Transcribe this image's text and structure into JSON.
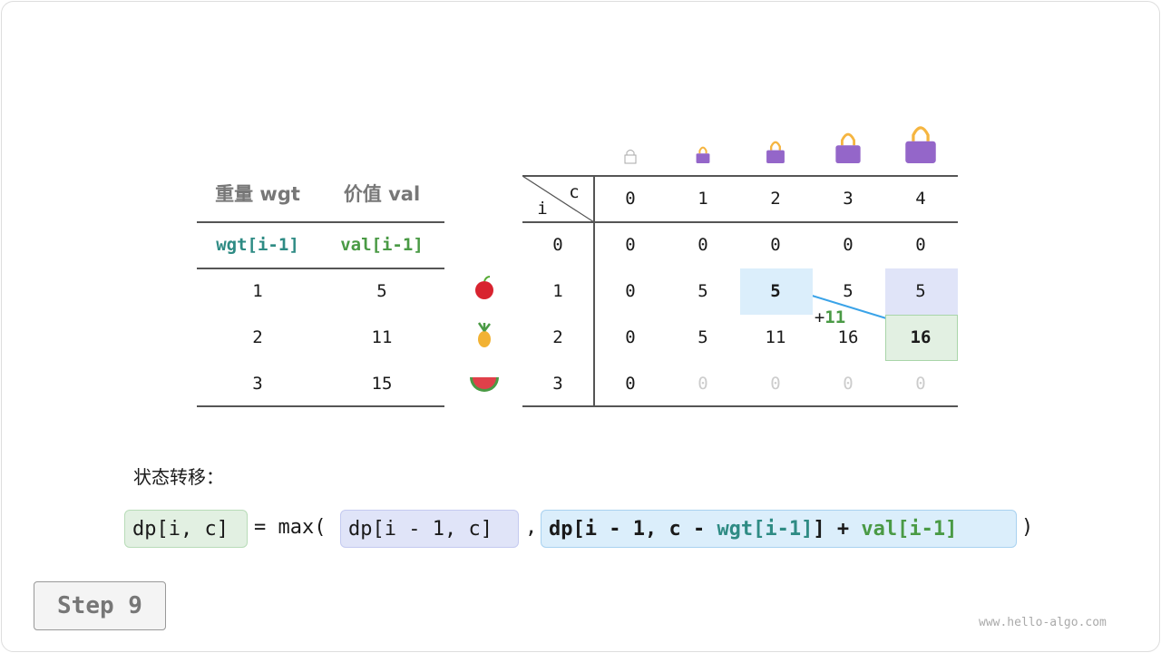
{
  "items_table": {
    "headers": [
      "重量 wgt",
      "价值 val"
    ],
    "subheaders": [
      "wgt[i-1]",
      "val[i-1]"
    ],
    "rows": [
      [
        "1",
        "5"
      ],
      [
        "2",
        "11"
      ],
      [
        "3",
        "15"
      ]
    ],
    "item_icons": [
      "apple-icon",
      "pineapple-icon",
      "watermelon-icon"
    ]
  },
  "dp_table": {
    "corner_c": "c",
    "corner_i": "i",
    "col_headers": [
      "0",
      "1",
      "2",
      "3",
      "4"
    ],
    "row_headers": [
      "0",
      "1",
      "2",
      "3"
    ],
    "rows": [
      [
        "0",
        "0",
        "0",
        "0",
        "0"
      ],
      [
        "0",
        "5",
        "5",
        "5",
        "5"
      ],
      [
        "0",
        "5",
        "11",
        "16",
        "16"
      ],
      [
        "0",
        "0",
        "0",
        "0",
        "0"
      ]
    ],
    "computed_mask": [
      [
        1,
        1,
        1,
        1,
        1
      ],
      [
        1,
        1,
        1,
        1,
        1
      ],
      [
        1,
        1,
        1,
        1,
        1
      ],
      [
        1,
        0,
        0,
        0,
        0
      ]
    ],
    "highlight_blue": [
      1,
      2
    ],
    "highlight_purple": [
      1,
      4
    ],
    "highlight_green": [
      2,
      4
    ],
    "bag_icons": [
      "empty-bag-icon",
      "bag-icon",
      "bag-icon",
      "bag-icon",
      "bag-icon"
    ],
    "plus_label": "+",
    "plus_value": "11"
  },
  "transition": {
    "label": "状态转移：",
    "lhs": "dp[i, c]",
    "eq": "= max(",
    "opt1": "dp[i - 1, c]",
    "comma": ",",
    "opt2_a": "dp[i - 1, c - ",
    "opt2_wgt": "wgt[i-1]",
    "opt2_b": "] + ",
    "opt2_val": "val[i-1]",
    "close": ")"
  },
  "step_label": "Step 9",
  "watermark": "www.hello-algo.com",
  "colors": {
    "blue": "#dbeefb",
    "purple": "#e0e4f8",
    "green": "#e2f0e2",
    "teal": "#2e8b84",
    "val_green": "#4a9a45",
    "arrow": "#3aa3e8",
    "bag": "#9466c9"
  }
}
